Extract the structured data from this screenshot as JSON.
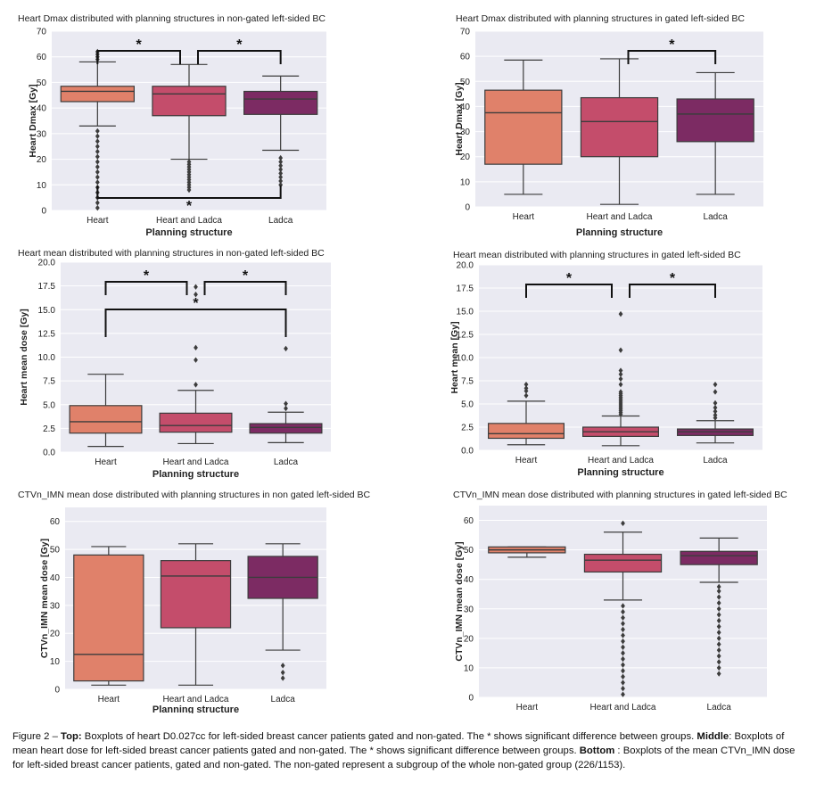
{
  "chart_data": [
    {
      "type": "box",
      "title": "Heart Dmax distributed with planning structures in non-gated left-sided BC",
      "xlabel": "Planning structure",
      "ylabel": "Heart Dmax [Gy]",
      "categories": [
        "Heart",
        "Heart and Ladca",
        "Ladca"
      ],
      "ylim": [
        0,
        70
      ],
      "yticks": [
        0,
        10,
        20,
        30,
        40,
        50,
        60,
        70
      ],
      "grid": true,
      "colors": [
        "#e0816a",
        "#c44d6b",
        "#7c2b63"
      ],
      "boxes": [
        {
          "min": 33,
          "q1": 42.5,
          "median": 46.5,
          "q3": 48.5,
          "max": 58,
          "outliers": [
            1,
            3,
            5,
            7,
            9,
            11,
            13,
            15,
            17,
            19,
            21,
            23,
            25,
            27,
            29,
            31,
            59,
            60,
            61,
            62
          ]
        },
        {
          "min": 20,
          "q1": 37,
          "median": 45.5,
          "q3": 48.5,
          "max": 57,
          "outliers": [
            8,
            9,
            10,
            11,
            12,
            13,
            14,
            15,
            16,
            17,
            18,
            19
          ]
        },
        {
          "min": 23.5,
          "q1": 37.5,
          "median": 43.5,
          "q3": 46.5,
          "max": 52.5,
          "outliers": [
            10,
            11.5,
            13,
            14.5,
            16,
            17.5,
            19,
            20.5
          ]
        }
      ],
      "significance": [
        {
          "from": 0,
          "to": 1,
          "label": "*"
        },
        {
          "from": 1,
          "to": 2,
          "label": "*"
        },
        {
          "from": 0,
          "to": 2,
          "label": "*",
          "below": true
        }
      ]
    },
    {
      "type": "box",
      "title": "Heart Dmax distributed with planning structures in gated left-sided BC",
      "xlabel": "Planning structure",
      "ylabel": "Heart Dmax [Gy]",
      "categories": [
        "Heart",
        "Heart and Ladca",
        "Ladca"
      ],
      "ylim": [
        0,
        70
      ],
      "yticks": [
        0,
        10,
        20,
        30,
        40,
        50,
        60,
        70
      ],
      "grid": true,
      "colors": [
        "#e0816a",
        "#c44d6b",
        "#7c2b63"
      ],
      "boxes": [
        {
          "min": 5,
          "q1": 17,
          "median": 37.5,
          "q3": 46.5,
          "max": 58.5,
          "outliers": []
        },
        {
          "min": 1,
          "q1": 20,
          "median": 34,
          "q3": 43.5,
          "max": 59,
          "outliers": []
        },
        {
          "min": 5,
          "q1": 26,
          "median": 37,
          "q3": 43,
          "max": 53.5,
          "outliers": []
        }
      ],
      "significance": [
        {
          "from": 1,
          "to": 2,
          "label": "*"
        }
      ]
    },
    {
      "type": "box",
      "title": "Heart mean distributed with planning structures in non-gated left-sided BC",
      "xlabel": "Planning structure",
      "ylabel": "Heart mean dose [Gy]",
      "categories": [
        "Heart",
        "Heart and Ladca",
        "Ladca"
      ],
      "ylim": [
        0,
        20
      ],
      "yticks": [
        "0.0",
        "2.5",
        "5.0",
        "7.5",
        "10.0",
        "12.5",
        "15.0",
        "17.5",
        "20.0"
      ],
      "grid": true,
      "colors": [
        "#e0816a",
        "#c44d6b",
        "#7c2b63"
      ],
      "boxes": [
        {
          "min": 0.6,
          "q1": 2.0,
          "median": 3.2,
          "q3": 4.9,
          "max": 8.2,
          "outliers": []
        },
        {
          "min": 0.9,
          "q1": 2.1,
          "median": 2.8,
          "q3": 4.1,
          "max": 6.5,
          "outliers": [
            7.1,
            9.7,
            11.0,
            16.6,
            17.4
          ]
        },
        {
          "min": 1.0,
          "q1": 2.0,
          "median": 2.6,
          "q3": 3.0,
          "max": 4.2,
          "outliers": [
            4.6,
            5.1,
            10.9
          ]
        }
      ],
      "significance": [
        {
          "from": 0,
          "to": 1,
          "label": "*"
        },
        {
          "from": 1,
          "to": 2,
          "label": "*"
        },
        {
          "from": 0,
          "to": 2,
          "label": "*"
        }
      ]
    },
    {
      "type": "box",
      "title": "Heart mean distributed with planning structures in gated left-sided BC",
      "xlabel": "Planning structure",
      "ylabel": "Heart mean [Gy]",
      "categories": [
        "Heart",
        "Heart and Ladca",
        "Ladca"
      ],
      "ylim": [
        0,
        20
      ],
      "yticks": [
        "0.0",
        "2.5",
        "5.0",
        "7.5",
        "10.0",
        "12.5",
        "15.0",
        "17.5",
        "20.0"
      ],
      "grid": true,
      "colors": [
        "#e0816a",
        "#c44d6b",
        "#7c2b63"
      ],
      "boxes": [
        {
          "min": 0.6,
          "q1": 1.3,
          "median": 1.8,
          "q3": 2.9,
          "max": 5.3,
          "outliers": [
            5.9,
            6.4,
            6.7,
            7.1
          ]
        },
        {
          "min": 0.5,
          "q1": 1.5,
          "median": 2.0,
          "q3": 2.5,
          "max": 3.7,
          "outliers": [
            3.9,
            4.1,
            4.3,
            4.5,
            4.7,
            4.9,
            5.1,
            5.3,
            5.5,
            5.7,
            5.9,
            6.1,
            6.3,
            7.1,
            7.7,
            8.2,
            8.6,
            10.8,
            14.7
          ]
        },
        {
          "min": 0.8,
          "q1": 1.6,
          "median": 2.0,
          "q3": 2.3,
          "max": 3.2,
          "outliers": [
            3.5,
            3.8,
            4.2,
            4.6,
            5.1,
            6.3,
            7.1
          ]
        }
      ],
      "significance": [
        {
          "from": 0,
          "to": 1,
          "label": "*"
        },
        {
          "from": 1,
          "to": 2,
          "label": "*"
        }
      ]
    },
    {
      "type": "box",
      "title": "CTVn_IMN mean dose distributed with planning structures in non gated left-sided BC",
      "xlabel": "Planning structure",
      "ylabel": "CTVn_IMN mean dose [Gy]",
      "categories": [
        "Heart",
        "Heart and Ladca",
        "Ladca"
      ],
      "ylim": [
        0,
        65
      ],
      "yticks": [
        0,
        10,
        20,
        30,
        40,
        50,
        60
      ],
      "grid": true,
      "colors": [
        "#e0816a",
        "#c44d6b",
        "#7c2b63"
      ],
      "boxes": [
        {
          "min": 1.5,
          "q1": 3,
          "median": 12.5,
          "q3": 48,
          "max": 51,
          "outliers": []
        },
        {
          "min": 1.5,
          "q1": 22,
          "median": 40.5,
          "q3": 46,
          "max": 52,
          "outliers": []
        },
        {
          "min": 14,
          "q1": 32.5,
          "median": 40,
          "q3": 47.5,
          "max": 52,
          "outliers": [
            4,
            6,
            8.5
          ]
        }
      ],
      "significance": []
    },
    {
      "type": "box",
      "title": "CTVn_IMN mean dose distributed with planning structures in gated left-sided BC",
      "xlabel": "Planning structure",
      "ylabel": "CTVn_IMN mean dose [Gy]",
      "categories": [
        "Heart",
        "Heart and Ladca",
        "Ladca"
      ],
      "ylim": [
        0,
        65
      ],
      "yticks": [
        0,
        10,
        20,
        30,
        40,
        50,
        60
      ],
      "grid": true,
      "colors": [
        "#e0816a",
        "#c44d6b",
        "#7c2b63"
      ],
      "boxes": [
        {
          "min": 47.5,
          "q1": 49,
          "median": 50,
          "q3": 51,
          "max": 51,
          "outliers": []
        },
        {
          "min": 33,
          "q1": 42.5,
          "median": 46.5,
          "q3": 48.5,
          "max": 56,
          "outliers": [
            1,
            3,
            5,
            7,
            9,
            11,
            13,
            15,
            17,
            19,
            21,
            23,
            25,
            27,
            29,
            31,
            59
          ]
        },
        {
          "min": 39,
          "q1": 45,
          "median": 48,
          "q3": 49.5,
          "max": 54,
          "outliers": [
            8,
            10,
            12,
            14,
            16,
            18,
            20,
            22,
            24,
            26,
            28,
            30,
            32,
            34,
            36,
            37.5
          ]
        }
      ],
      "significance": []
    }
  ],
  "caption": {
    "label": "Figure 2 – ",
    "top_label": "Top:",
    "top_text": " Boxplots of heart D0.027cc for left-sided breast cancer patients gated and non-gated. The * shows significant difference between groups. ",
    "middle_label": "Middle",
    "middle_text": ": Boxplots of mean heart dose for left-sided breast cancer patients gated and non-gated. The * shows significant difference between groups. ",
    "bottom_label": "Bottom",
    "bottom_text": " : Boxplots of the mean CTVn_IMN dose for left-sided breast cancer patients, gated and non-gated. The non-gated represent a subgroup of the whole non-gated group (226/1153)."
  }
}
